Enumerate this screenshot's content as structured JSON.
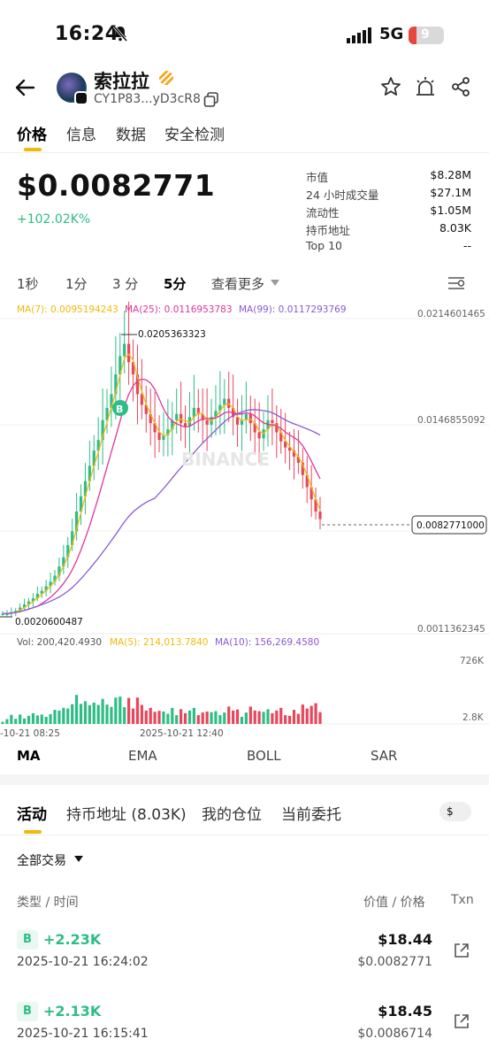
{
  "status_bar": {
    "time": "16:24",
    "network": "5G",
    "battery": "9"
  },
  "token": {
    "name": "索拉拉",
    "address": "CY1P83...yD3cR8"
  },
  "main_tabs": [
    {
      "label": "价格",
      "active": true
    },
    {
      "label": "信息",
      "active": false
    },
    {
      "label": "数据",
      "active": false
    },
    {
      "label": "安全检测",
      "active": false
    }
  ],
  "price": {
    "value": "$0.0082771",
    "change": "+102.02K%"
  },
  "stats": [
    {
      "label": "市值",
      "value": "$8.28M"
    },
    {
      "label": "24 小时成交量",
      "value": "$27.1M"
    },
    {
      "label": "流动性",
      "value": "$1.05M"
    },
    {
      "label": "持币地址",
      "value": "8.03K"
    },
    {
      "label": "Top 10",
      "value": "--"
    }
  ],
  "intervals": [
    {
      "label": "1秒",
      "active": false
    },
    {
      "label": "1分",
      "active": false
    },
    {
      "label": "3 分",
      "active": false
    },
    {
      "label": "5分",
      "active": true
    },
    {
      "label": "查看更多",
      "active": false
    }
  ],
  "ma_legend": {
    "ma7": "MA(7): 0.0095194243",
    "ma25": "MA(25): 0.0116953783",
    "ma99": "MA(99): 0.0117293769"
  },
  "colors": {
    "up": "#2ebd85",
    "down": "#e8465a",
    "ma7": "#f0b90b",
    "ma25": "#e0359a",
    "ma99": "#8a5ad4",
    "accent": "#f0b90b"
  },
  "chart_data": {
    "type": "candlestick",
    "y_axis_labels": [
      "0.0214601465",
      "0.0146855092",
      "0.0011362345"
    ],
    "high_label": "0.0205363323",
    "low_label": "0.0020600487",
    "last_price": "0.0082771000",
    "volume_legend": {
      "vol": "Vol: 200,420.4930",
      "ma5": "MA(5): 214,013.7840",
      "ma10": "MA(10): 156,269.4580"
    },
    "volume_axis": [
      "726K",
      "2.8K"
    ],
    "x_labels": [
      "-10-21 08:25",
      "2025-10-21 12:40"
    ],
    "watermark": "BINANCE",
    "close_series": [
      0.0021,
      0.0021,
      0.0022,
      0.0023,
      0.0025,
      0.0027,
      0.0029,
      0.0031,
      0.0034,
      0.0036,
      0.0039,
      0.0042,
      0.0046,
      0.0052,
      0.0058,
      0.0066,
      0.0075,
      0.0088,
      0.0098,
      0.0108,
      0.0118,
      0.0128,
      0.0135,
      0.0148,
      0.0156,
      0.0165,
      0.0178,
      0.019,
      0.0198,
      0.0186,
      0.0178,
      0.0165,
      0.0158,
      0.0152,
      0.0146,
      0.014,
      0.0135,
      0.0138,
      0.0142,
      0.0148,
      0.0152,
      0.0146,
      0.0144,
      0.015,
      0.0156,
      0.0152,
      0.0148,
      0.0145,
      0.015,
      0.0154,
      0.0158,
      0.0162,
      0.0156,
      0.015,
      0.0145,
      0.0148,
      0.0152,
      0.0146,
      0.014,
      0.0136,
      0.0142,
      0.0148,
      0.0146,
      0.014,
      0.0134,
      0.013,
      0.0128,
      0.0124,
      0.012,
      0.0112,
      0.0104,
      0.0096,
      0.0088,
      0.0083
    ]
  },
  "indicator_tabs": [
    {
      "label": "MA",
      "active": true
    },
    {
      "label": "EMA",
      "active": false
    },
    {
      "label": "BOLL",
      "active": false
    },
    {
      "label": "SAR",
      "active": false
    }
  ],
  "activity_tabs": [
    {
      "label": "活动",
      "active": true
    },
    {
      "label": "持币地址 (8.03K)",
      "active": false
    },
    {
      "label": "我的仓位",
      "active": false
    },
    {
      "label": "当前委托",
      "active": false
    }
  ],
  "currency_toggle": "$",
  "filter_label": "全部交易",
  "columns": {
    "type_time": "类型 / 时间",
    "value_price": "价值 / 价格",
    "txn": "Txn"
  },
  "transactions": [
    {
      "side": "B",
      "amount": "+2.23K",
      "time": "2025-10-21 16:24:02",
      "value": "$18.44",
      "price": "$0.0082771"
    },
    {
      "side": "B",
      "amount": "+2.13K",
      "time": "2025-10-21 16:15:41",
      "value": "$18.45",
      "price": "$0.0086714"
    }
  ]
}
